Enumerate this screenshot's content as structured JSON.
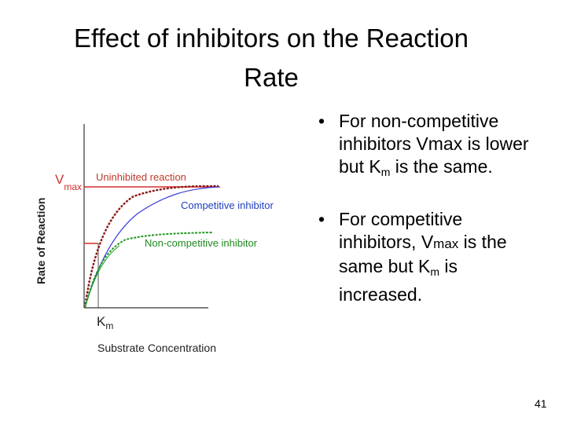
{
  "slide": {
    "title_line1": "Effect of inhibitors on the Reaction",
    "title_line2": "Rate",
    "page_number": "41"
  },
  "graph": {
    "y_axis_label": "Rate of Reaction",
    "x_axis_label": "Substrate Concentration",
    "vmax_label": "V",
    "vmax_sub": "max",
    "km_label": "K",
    "km_sub": "m",
    "series_labels": {
      "uninhibited": "Uninhibited reaction",
      "competitive": "Competitive inhibitor",
      "noncompetitive": "Non-competitive inhibitor"
    },
    "colors": {
      "uninhibited": "#8b1a1a",
      "competitive": "#3a3ae0",
      "noncompetitive": "#1f9a1f",
      "vmax_line": "#d32f2f",
      "vmax_label": "#d32f2f",
      "series_text": "#c0392b",
      "competitive_text": "#1f3fbf",
      "noncompetitive_text": "#1f8a1f"
    }
  },
  "bullets": {
    "b1": {
      "marker": "•",
      "line1": "For non-competitive",
      "line2": "inhibitors Vmax is lower",
      "line3_pre": "but K",
      "line3_sub": "m",
      "line3_post": " is the same."
    },
    "b2": {
      "marker": "•",
      "line1": "For competitive",
      "line2_pre": "inhibitors, V",
      "line2_small": "max",
      "line2_post": " is the",
      "line3_pre": "same but K",
      "line3_sub": "m",
      "line3_post": " is",
      "line4": "increased."
    }
  }
}
